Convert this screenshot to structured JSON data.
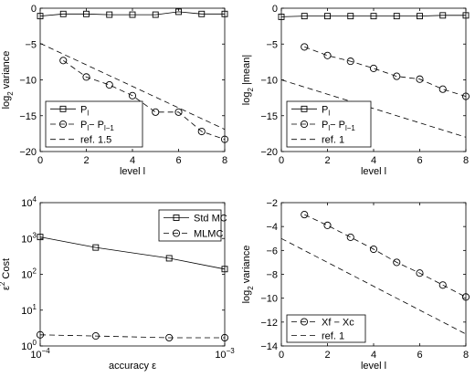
{
  "chart_data": [
    {
      "type": "line",
      "xlabel": "level l",
      "ylabel": {
        "main": "log",
        "sub": "2",
        "rest": " variance"
      },
      "xlim": [
        0,
        8
      ],
      "ylim": [
        -20,
        0
      ],
      "xscale": "linear",
      "yscale": "linear",
      "xticks": [
        0,
        2,
        4,
        6,
        8
      ],
      "yticks": [
        0,
        -5,
        -10,
        -15,
        -20
      ],
      "grid": false,
      "legend_position": "bottom-left",
      "series": [
        {
          "name": "P_l",
          "legend_parts": [
            "P",
            "l",
            ""
          ],
          "marker": "square",
          "dash": "solid",
          "x": [
            0,
            1,
            2,
            3,
            4,
            5,
            6,
            7,
            8
          ],
          "values": [
            -1.1,
            -0.8,
            -0.8,
            -0.9,
            -0.9,
            -0.9,
            -0.5,
            -0.8,
            -0.8
          ]
        },
        {
          "name": "P_l - P_l-1",
          "legend_parts": [
            "P",
            "l",
            "− P",
            "l−1"
          ],
          "marker": "circle",
          "dash": "dashed",
          "x": [
            1,
            2,
            3,
            4,
            5,
            6,
            7,
            8
          ],
          "values": [
            -7.3,
            -9.6,
            -10.7,
            -12.2,
            -14.5,
            -14.5,
            -17.2,
            -18.3
          ]
        },
        {
          "name": "ref. 1.5",
          "legend_parts": [
            "ref. 1.5"
          ],
          "marker": "none",
          "dash": "dashed",
          "x": [
            0,
            8
          ],
          "values": [
            -4.9,
            -16.9
          ]
        }
      ]
    },
    {
      "type": "line",
      "xlabel": "level l",
      "ylabel": {
        "main": "log",
        "sub": "2",
        "rest": " |mean|"
      },
      "xlim": [
        0,
        8
      ],
      "ylim": [
        -20,
        0
      ],
      "xscale": "linear",
      "yscale": "linear",
      "xticks": [
        0,
        2,
        4,
        6,
        8
      ],
      "yticks": [
        0,
        -5,
        -10,
        -15,
        -20
      ],
      "grid": false,
      "legend_position": "bottom-left",
      "series": [
        {
          "name": "P_l",
          "legend_parts": [
            "P",
            "l",
            ""
          ],
          "marker": "square",
          "dash": "solid",
          "x": [
            0,
            1,
            2,
            3,
            4,
            5,
            6,
            7,
            8
          ],
          "values": [
            -1.2,
            -1.1,
            -1.1,
            -1.1,
            -1.1,
            -1.1,
            -1.1,
            -1.0,
            -1.0
          ]
        },
        {
          "name": "P_l - P_l-1",
          "legend_parts": [
            "P",
            "l",
            "− P",
            "l−1"
          ],
          "marker": "circle",
          "dash": "dashed",
          "x": [
            1,
            2,
            3,
            4,
            5,
            6,
            7,
            8
          ],
          "values": [
            -5.4,
            -6.6,
            -7.4,
            -8.4,
            -9.5,
            -9.9,
            -11.3,
            -12.3
          ]
        },
        {
          "name": "ref. 1",
          "legend_parts": [
            "ref. 1"
          ],
          "marker": "none",
          "dash": "dashed",
          "x": [
            0,
            8
          ],
          "values": [
            -10.0,
            -18.0
          ]
        }
      ]
    },
    {
      "type": "line",
      "xlabel": "accuracy ε",
      "ylabel": {
        "main": "ε",
        "sup": "2",
        "rest": " Cost"
      },
      "xlim": [
        0.0001,
        0.001
      ],
      "ylim": [
        1,
        10000
      ],
      "xscale": "log",
      "yscale": "log",
      "xticks": [
        {
          "value": 0.0001,
          "base": "10",
          "exp": "−4"
        },
        {
          "value": 0.001,
          "base": "10",
          "exp": "−3"
        }
      ],
      "yticks": [
        {
          "value": 1,
          "base": "10",
          "exp": "0"
        },
        {
          "value": 10,
          "base": "10",
          "exp": "1"
        },
        {
          "value": 100,
          "base": "10",
          "exp": "2"
        },
        {
          "value": 1000,
          "base": "10",
          "exp": "3"
        },
        {
          "value": 10000,
          "base": "10",
          "exp": "4"
        }
      ],
      "grid": false,
      "legend_position": "top-right",
      "series": [
        {
          "name": "Std MC",
          "legend_parts": [
            "Std MC"
          ],
          "marker": "square",
          "dash": "solid",
          "x": [
            0.0001,
            0.0002,
            0.0005,
            0.001
          ],
          "values": [
            1100,
            560,
            280,
            140
          ]
        },
        {
          "name": "MLMC",
          "legend_parts": [
            "MLMC"
          ],
          "marker": "circle",
          "dash": "dashed",
          "x": [
            0.0001,
            0.0002,
            0.0005,
            0.001
          ],
          "values": [
            2.05,
            1.9,
            1.7,
            1.7
          ]
        }
      ]
    },
    {
      "type": "line",
      "xlabel": "level l",
      "ylabel": {
        "main": "log",
        "sub": "2",
        "rest": " variance"
      },
      "xlim": [
        0,
        8
      ],
      "ylim": [
        -14,
        -2
      ],
      "xscale": "linear",
      "yscale": "linear",
      "xticks": [
        0,
        2,
        4,
        6,
        8
      ],
      "yticks": [
        -2,
        -4,
        -6,
        -8,
        -10,
        -12,
        -14
      ],
      "grid": false,
      "legend_position": "bottom-left",
      "series": [
        {
          "name": "Xf - Xc",
          "legend_parts": [
            "Xf − Xc"
          ],
          "marker": "circle",
          "dash": "dashed",
          "x": [
            1,
            2,
            3,
            4,
            5,
            6,
            7,
            8
          ],
          "values": [
            -3.0,
            -3.9,
            -4.9,
            -5.9,
            -7.0,
            -7.9,
            -8.9,
            -9.9
          ]
        },
        {
          "name": "ref. 1",
          "legend_parts": [
            "ref. 1"
          ],
          "marker": "none",
          "dash": "dashed",
          "x": [
            0,
            8
          ],
          "values": [
            -5.0,
            -13.0
          ]
        }
      ]
    }
  ]
}
